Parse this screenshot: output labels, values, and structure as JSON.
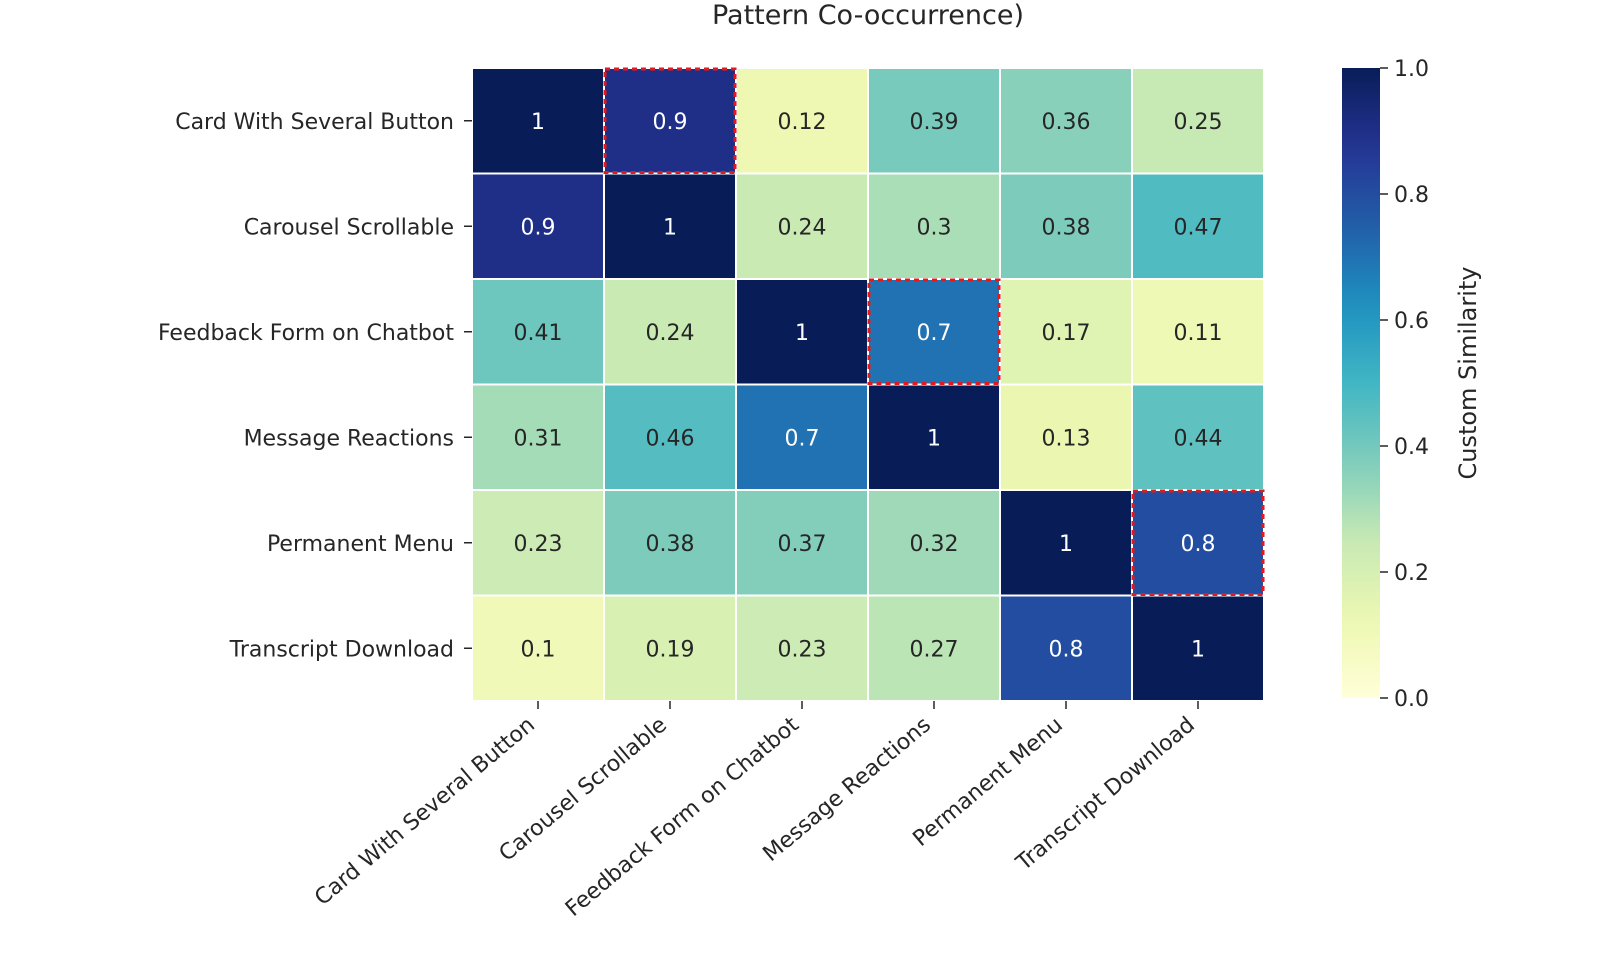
{
  "chart_data": {
    "type": "heatmap",
    "title": "Pattern Co-occurrence)",
    "xlabel": "",
    "ylabel": "",
    "rows": [
      "Card With Several Button",
      "Carousel Scrollable",
      "Feedback Form on Chatbot",
      "Message Reactions",
      "Permanent Menu",
      "Transcript Download"
    ],
    "columns": [
      "Card With Several Button",
      "Carousel Scrollable",
      "Feedback Form on Chatbot",
      "Message Reactions",
      "Permanent Menu",
      "Transcript Download"
    ],
    "values": [
      [
        1,
        0.9,
        0.12,
        0.39,
        0.36,
        0.25
      ],
      [
        0.9,
        1,
        0.24,
        0.3,
        0.38,
        0.47
      ],
      [
        0.41,
        0.24,
        1,
        0.7,
        0.17,
        0.11
      ],
      [
        0.31,
        0.46,
        0.7,
        1,
        0.13,
        0.44
      ],
      [
        0.23,
        0.38,
        0.37,
        0.32,
        1,
        0.8
      ],
      [
        0.1,
        0.19,
        0.23,
        0.27,
        0.8,
        1
      ]
    ],
    "value_labels": [
      [
        "1",
        "0.9",
        "0.12",
        "0.39",
        "0.36",
        "0.25"
      ],
      [
        "0.9",
        "1",
        "0.24",
        "0.3",
        "0.38",
        "0.47"
      ],
      [
        "0.41",
        "0.24",
        "1",
        "0.7",
        "0.17",
        "0.11"
      ],
      [
        "0.31",
        "0.46",
        "0.7",
        "1",
        "0.13",
        "0.44"
      ],
      [
        "0.23",
        "0.38",
        "0.37",
        "0.32",
        "1",
        "0.8"
      ],
      [
        "0.1",
        "0.19",
        "0.23",
        "0.27",
        "0.8",
        "1"
      ]
    ],
    "highlighted_cells": [
      [
        0,
        1
      ],
      [
        2,
        3
      ],
      [
        4,
        5
      ]
    ],
    "highlight_color": "#e31a1c",
    "colormap": "YlGnBu",
    "vmin": 0.0,
    "vmax": 1.0,
    "colorbar": {
      "label": "Custom Similarity",
      "ticks": [
        0.0,
        0.2,
        0.4,
        0.6,
        0.8,
        1.0
      ],
      "tick_labels": [
        "0.0",
        "0.2",
        "0.4",
        "0.6",
        "0.8",
        "1.0"
      ]
    }
  }
}
